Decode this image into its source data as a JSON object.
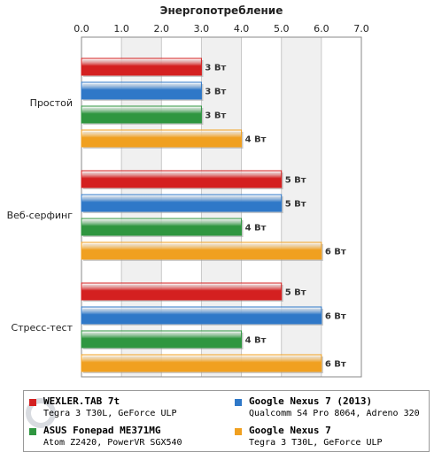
{
  "chart_data": {
    "type": "bar",
    "orientation": "horizontal",
    "title": "Энергопотребление",
    "categories": [
      "Простой",
      "Веб-серфинг",
      "Стресс-тест"
    ],
    "xlim": [
      0,
      7
    ],
    "xticks": [
      "0.0",
      "1.0",
      "2.0",
      "3.0",
      "4.0",
      "5.0",
      "6.0",
      "7.0"
    ],
    "grid": true,
    "legend_position": "bottom",
    "unit": "Вт",
    "series": [
      {
        "name": "WEXLER.TAB 7t",
        "desc": "Tegra 3 T30L, GeForce ULP",
        "color": "#d42020",
        "values": [
          3,
          5,
          5
        ]
      },
      {
        "name": "Google Nexus 7 (2013)",
        "desc": "Qualcomm S4 Pro 8064, Adreno 320",
        "color": "#2f78c8",
        "values": [
          3,
          5,
          6
        ]
      },
      {
        "name": "ASUS Fonepad ME371MG",
        "desc": "Atom Z2420, PowerVR SGX540",
        "color": "#2f9640",
        "values": [
          3,
          4,
          4
        ]
      },
      {
        "name": "Google Nexus 7",
        "desc": "Tegra 3 T30L, GeForce ULP",
        "color": "#f0a020",
        "values": [
          4,
          6,
          6
        ]
      }
    ],
    "value_labels": [
      [
        "3 Вт",
        "5 Вт",
        "5 Вт"
      ],
      [
        "3 Вт",
        "5 Вт",
        "6 Вт"
      ],
      [
        "3 Вт",
        "4 Вт",
        "4 Вт"
      ],
      [
        "4 Вт",
        "6 Вт",
        "6 Вт"
      ]
    ]
  },
  "watermark": "NOTEBOOK"
}
